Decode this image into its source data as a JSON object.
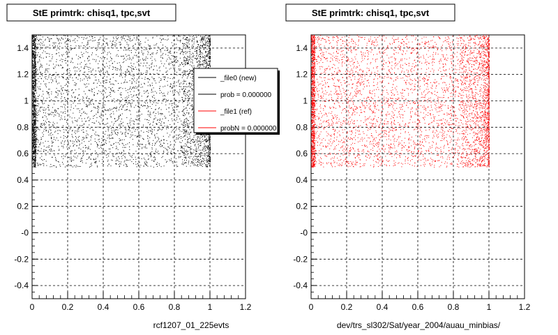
{
  "chart_data": [
    {
      "type": "scatter",
      "title": "StE primtrk: chisq1, tpc,svt",
      "xlabel": "rcf1207_01_225evts",
      "ylabel": "",
      "xlim": [
        0,
        1.2
      ],
      "ylim": [
        -0.5,
        1.5
      ],
      "x_ticks": [
        "0",
        "0.2",
        "0.4",
        "0.6",
        "0.8",
        "1",
        "1.2"
      ],
      "y_ticks": [
        "-0.4",
        "-0.2",
        "-0",
        "0.2",
        "0.4",
        "0.6",
        "0.8",
        "1",
        "1.2",
        "1.4"
      ],
      "grid": true,
      "legend": {
        "position": "top-right",
        "entries": [
          {
            "label": "_file0 (new)",
            "color": "#000000"
          },
          {
            "label": "prob = 0.000000",
            "color": "#000000"
          },
          {
            "label": "_file1 (ref)",
            "color": "#ff0000"
          },
          {
            "label": "probN = 0.000000",
            "color": "#ff0000"
          }
        ]
      },
      "series": [
        {
          "color": "#000000",
          "x_range": [
            0,
            1.0
          ],
          "y_range": [
            0.5,
            1.5
          ],
          "edge_density": "high"
        }
      ]
    },
    {
      "type": "scatter",
      "title": "StE primtrk: chisq1, tpc,svt",
      "xlabel": "dev/trs_sl302/Sat/year_2004/auau_minbias/",
      "ylabel": "",
      "xlim": [
        0,
        1.2
      ],
      "ylim": [
        -0.5,
        1.5
      ],
      "x_ticks": [
        "0",
        "0.2",
        "0.4",
        "0.6",
        "0.8",
        "1",
        "1.2"
      ],
      "y_ticks": [
        "-0.4",
        "-0.2",
        "-0",
        "0.2",
        "0.4",
        "0.6",
        "0.8",
        "1",
        "1.2",
        "1.4"
      ],
      "grid": true,
      "series": [
        {
          "color": "#ff0000",
          "x_range": [
            0,
            1.0
          ],
          "y_range": [
            0.5,
            1.5
          ],
          "edge_density": "high"
        }
      ]
    }
  ]
}
